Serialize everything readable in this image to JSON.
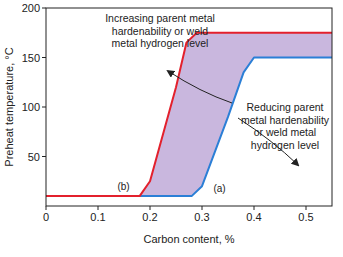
{
  "chart_data": {
    "type": "line",
    "x_label": "Carbon content, %",
    "y_label": "Preheat temperature, °C",
    "xlim": [
      0,
      0.55
    ],
    "xticks": [
      0,
      0.1,
      0.2,
      0.3,
      0.4,
      0.5
    ],
    "ylim": [
      0,
      200
    ],
    "yticks": [
      50,
      100,
      150,
      200
    ],
    "grid": false,
    "series": [
      {
        "name": "(a)",
        "color": "#2b7fd6",
        "x": [
          0,
          0.28,
          0.3,
          0.35,
          0.38,
          0.4,
          0.55
        ],
        "values": [
          10,
          10,
          20,
          90,
          135,
          150,
          150
        ]
      },
      {
        "name": "(b)",
        "color": "#e3202c",
        "x": [
          0,
          0.18,
          0.2,
          0.25,
          0.27,
          0.29,
          0.55
        ],
        "values": [
          10,
          10,
          25,
          120,
          165,
          175,
          175
        ]
      }
    ],
    "annotations": [
      {
        "lines": [
          "Increasing parent metal",
          "hardenability or weld",
          "metal hydrogen level"
        ]
      },
      {
        "lines": [
          "Reducing parent",
          "metal hardenability",
          "or weld metal",
          "hydrogen level"
        ]
      }
    ]
  }
}
